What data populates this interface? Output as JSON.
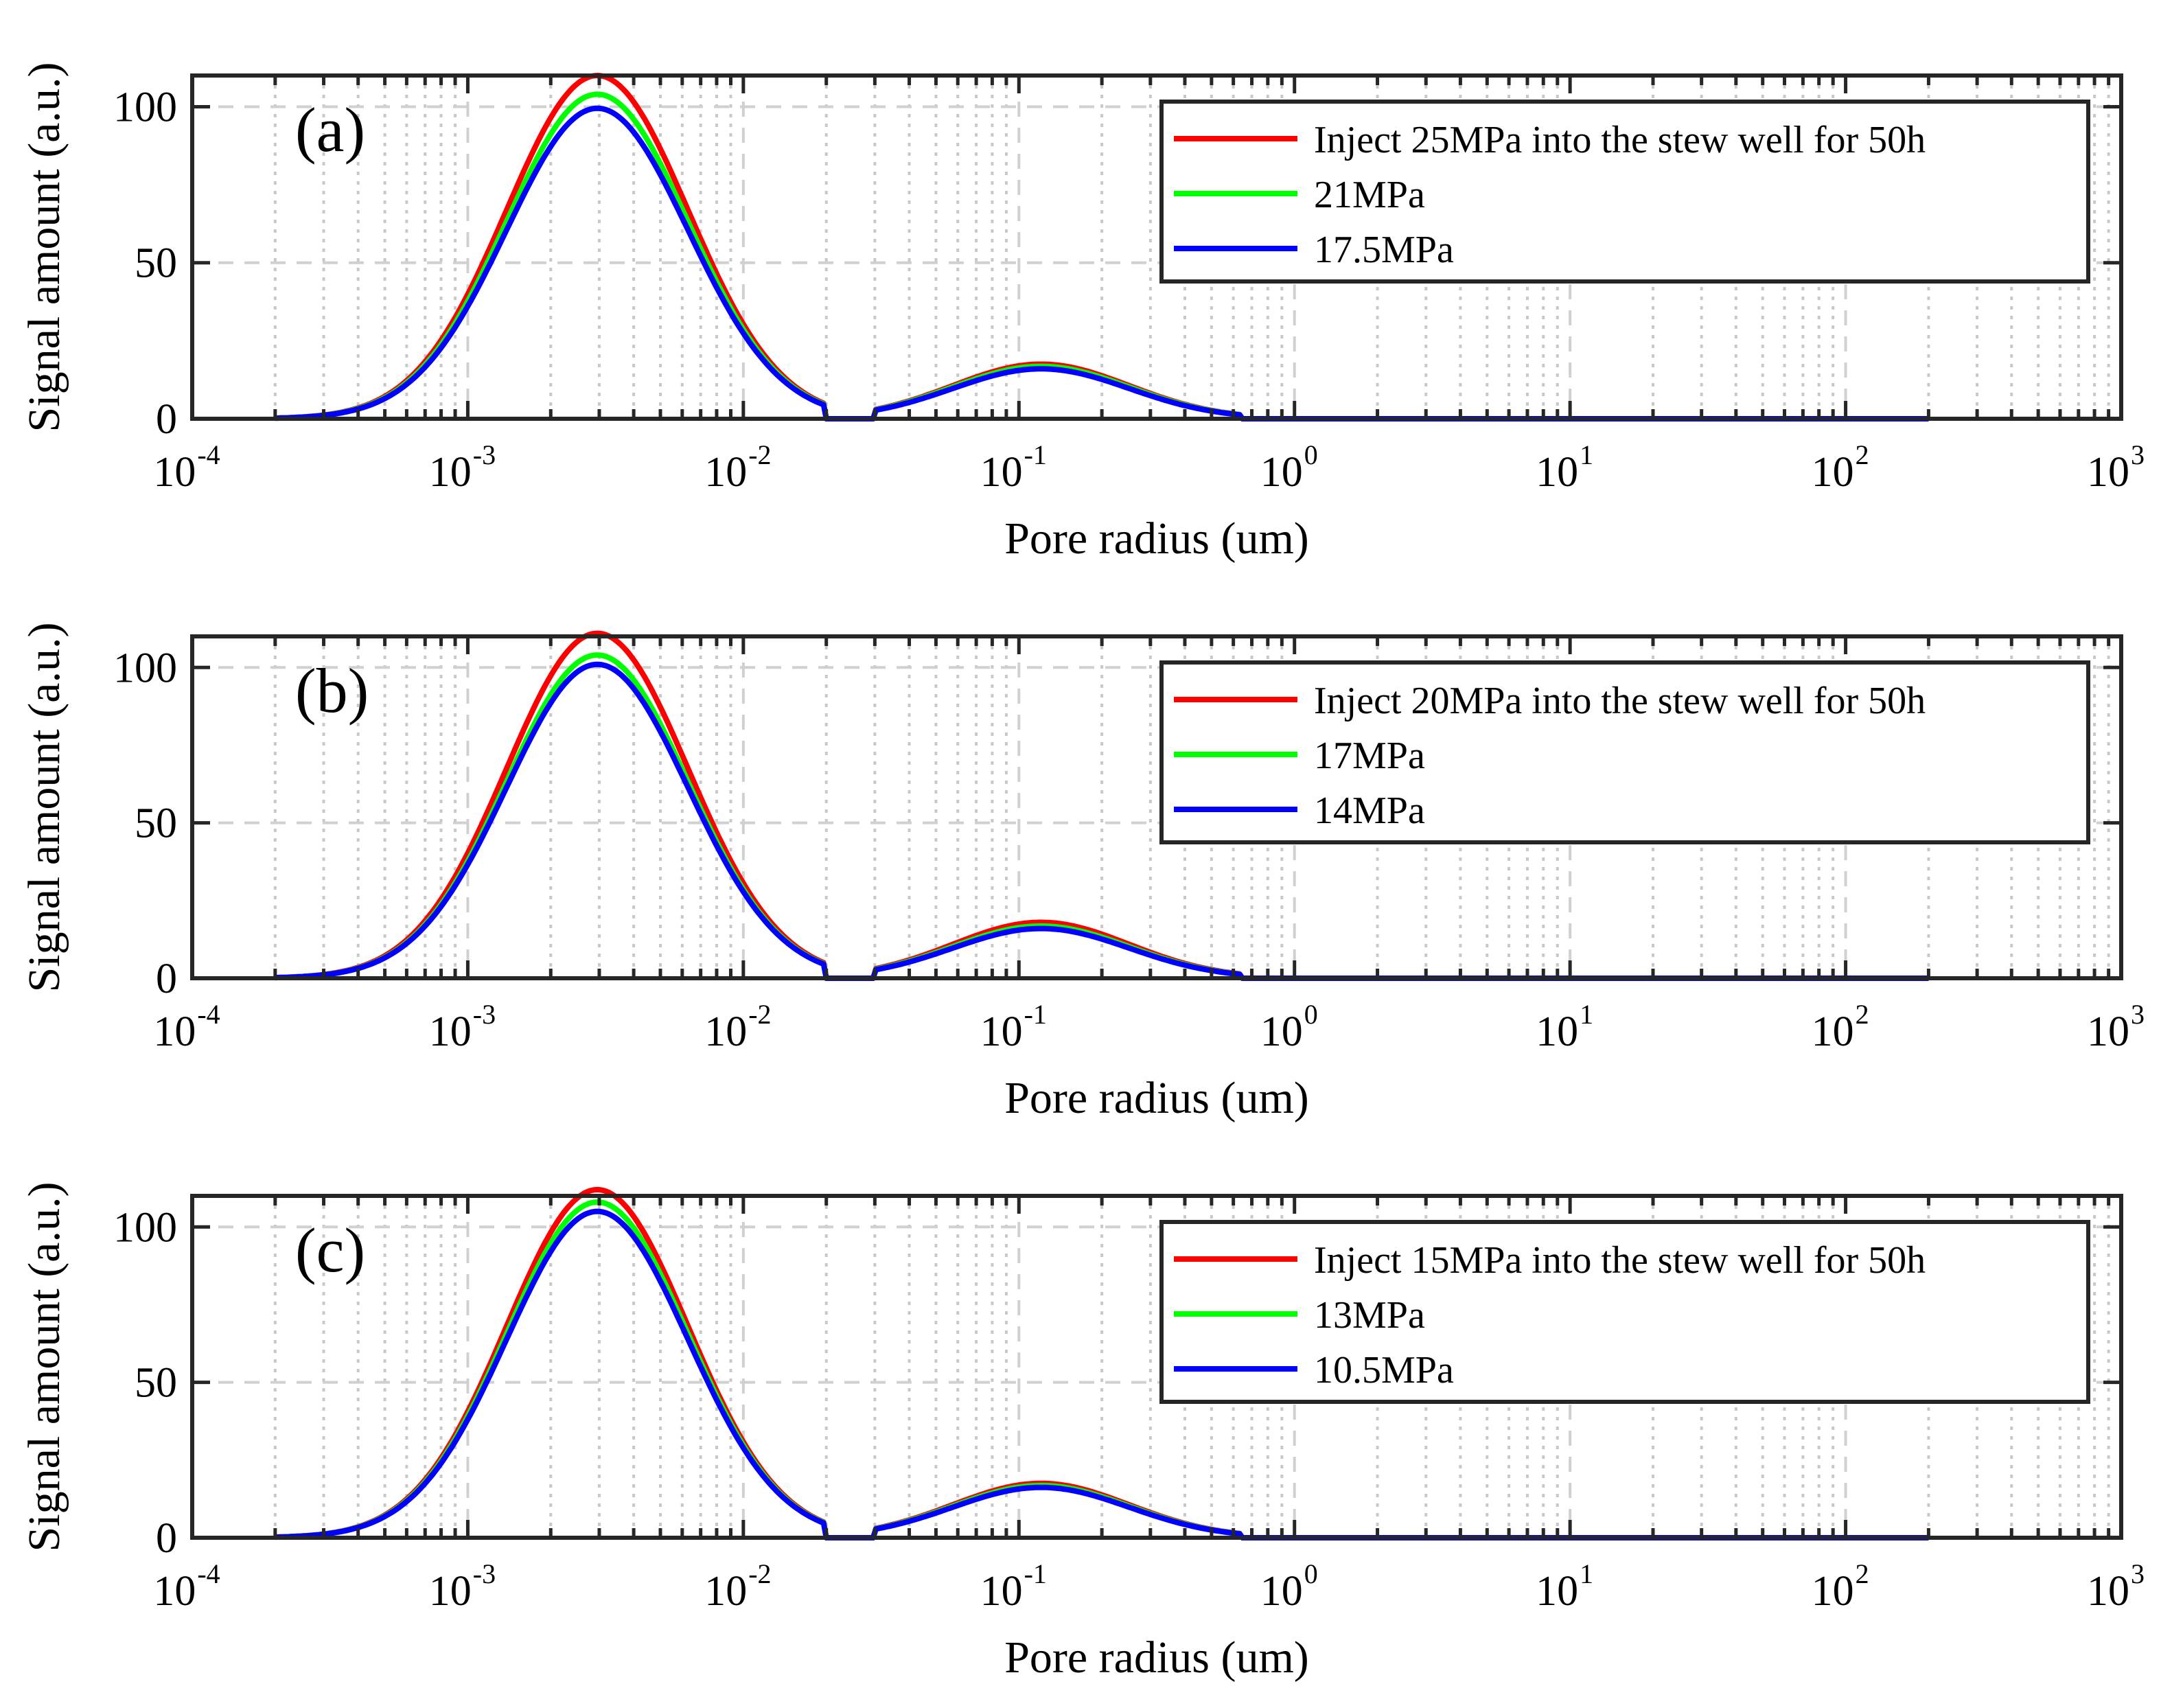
{
  "chart_data": [
    {
      "type": "line",
      "panel_label": "(a)",
      "xlabel": "Pore radius (um)",
      "ylabel": "Signal amount (a.u.)",
      "xscale": "log",
      "xlim": [
        0.0001,
        1000
      ],
      "ylim": [
        0,
        110
      ],
      "yticks": [
        0,
        50,
        100
      ],
      "xticks": [
        {
          "base": "10",
          "exp": "-4"
        },
        {
          "base": "10",
          "exp": "-3"
        },
        {
          "base": "10",
          "exp": "-2"
        },
        {
          "base": "10",
          "exp": "-1"
        },
        {
          "base": "10",
          "exp": "0"
        },
        {
          "base": "10",
          "exp": "1"
        },
        {
          "base": "10",
          "exp": "2"
        },
        {
          "base": "10",
          "exp": "3"
        }
      ],
      "grid": true,
      "legend_position": "top-right",
      "series": [
        {
          "name": "Inject 25MPa into the stew well for 50h",
          "color": "#ff0000",
          "peak1": 110,
          "peak2": 17.5
        },
        {
          "name": "21MPa",
          "color": "#00ff00",
          "peak1": 104,
          "peak2": 16.8
        },
        {
          "name": "17.5MPa",
          "color": "#0000ff",
          "peak1": 99.5,
          "peak2": 16.0
        }
      ]
    },
    {
      "type": "line",
      "panel_label": "(b)",
      "xlabel": "Pore radius (um)",
      "ylabel": "Signal amount (a.u.)",
      "xscale": "log",
      "xlim": [
        0.0001,
        1000
      ],
      "ylim": [
        0,
        110
      ],
      "yticks": [
        0,
        50,
        100
      ],
      "xticks": [
        {
          "base": "10",
          "exp": "-4"
        },
        {
          "base": "10",
          "exp": "-3"
        },
        {
          "base": "10",
          "exp": "-2"
        },
        {
          "base": "10",
          "exp": "-1"
        },
        {
          "base": "10",
          "exp": "0"
        },
        {
          "base": "10",
          "exp": "1"
        },
        {
          "base": "10",
          "exp": "2"
        },
        {
          "base": "10",
          "exp": "3"
        }
      ],
      "grid": true,
      "legend_position": "top-right",
      "series": [
        {
          "name": "Inject 20MPa into the stew well for 50h",
          "color": "#ff0000",
          "peak1": 111,
          "peak2": 18.0
        },
        {
          "name": "17MPa",
          "color": "#00ff00",
          "peak1": 104,
          "peak2": 16.8
        },
        {
          "name": "14MPa",
          "color": "#0000ff",
          "peak1": 101,
          "peak2": 16.0
        }
      ]
    },
    {
      "type": "line",
      "panel_label": "(c)",
      "xlabel": "Pore radius (um)",
      "ylabel": "Signal amount (a.u.)",
      "xscale": "log",
      "xlim": [
        0.0001,
        1000
      ],
      "ylim": [
        0,
        110
      ],
      "yticks": [
        0,
        50,
        100
      ],
      "xticks": [
        {
          "base": "10",
          "exp": "-4"
        },
        {
          "base": "10",
          "exp": "-3"
        },
        {
          "base": "10",
          "exp": "-2"
        },
        {
          "base": "10",
          "exp": "-1"
        },
        {
          "base": "10",
          "exp": "0"
        },
        {
          "base": "10",
          "exp": "1"
        },
        {
          "base": "10",
          "exp": "2"
        },
        {
          "base": "10",
          "exp": "3"
        }
      ],
      "grid": true,
      "legend_position": "top-right",
      "series": [
        {
          "name": "Inject 15MPa into the stew well for 50h",
          "color": "#ff0000",
          "peak1": 112,
          "peak2": 17.5
        },
        {
          "name": "13MPa",
          "color": "#00ff00",
          "peak1": 108,
          "peak2": 16.8
        },
        {
          "name": "10.5MPa",
          "color": "#0000ff",
          "peak1": 105,
          "peak2": 16.2
        }
      ]
    }
  ]
}
